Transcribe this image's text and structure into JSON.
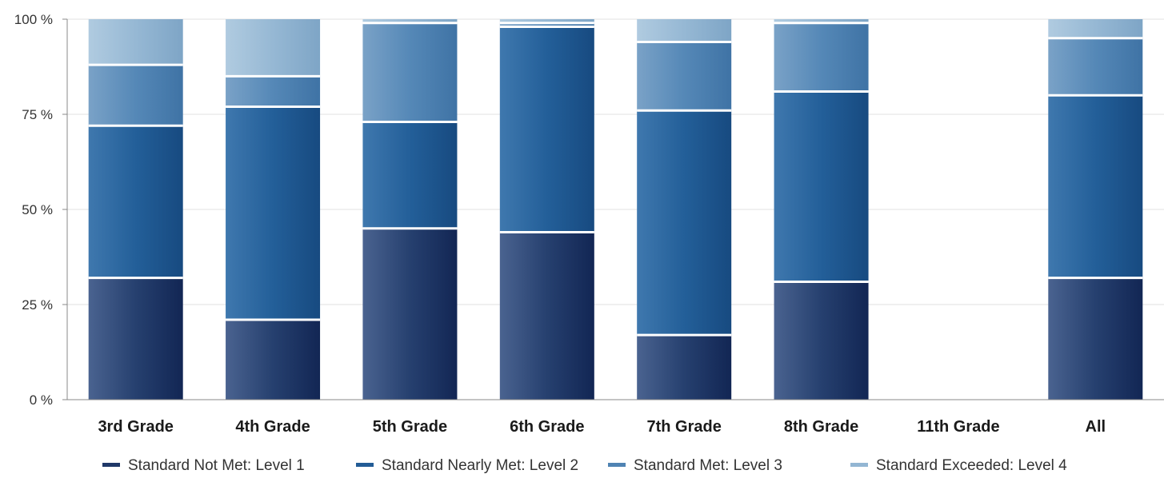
{
  "chart_data": {
    "type": "bar",
    "stacked": true,
    "percent": true,
    "categories": [
      "3rd Grade",
      "4th Grade",
      "5th Grade",
      "6th Grade",
      "7th Grade",
      "8th Grade",
      "11th Grade",
      "All"
    ],
    "series": [
      {
        "name": "Standard Not Met: Level 1",
        "color": "#1f3868",
        "values": [
          32,
          21,
          45,
          44,
          17,
          31,
          0,
          32
        ]
      },
      {
        "name": "Standard Nearly Met: Level 2",
        "color": "#225c96",
        "values": [
          40,
          56,
          28,
          54,
          59,
          50,
          0,
          48
        ]
      },
      {
        "name": "Standard Met: Level 3",
        "color": "#4f83b3",
        "values": [
          16,
          8,
          26,
          1,
          18,
          18,
          0,
          15
        ]
      },
      {
        "name": "Standard Exceeded: Level 4",
        "color": "#93b6d3",
        "values": [
          12,
          15,
          1,
          1,
          6,
          1,
          0,
          5
        ]
      }
    ],
    "yticks": [
      "0 %",
      "25 %",
      "50 %",
      "75 %",
      "100 %"
    ],
    "ylim": [
      0,
      100
    ],
    "grid": true,
    "legend": "bottom"
  }
}
